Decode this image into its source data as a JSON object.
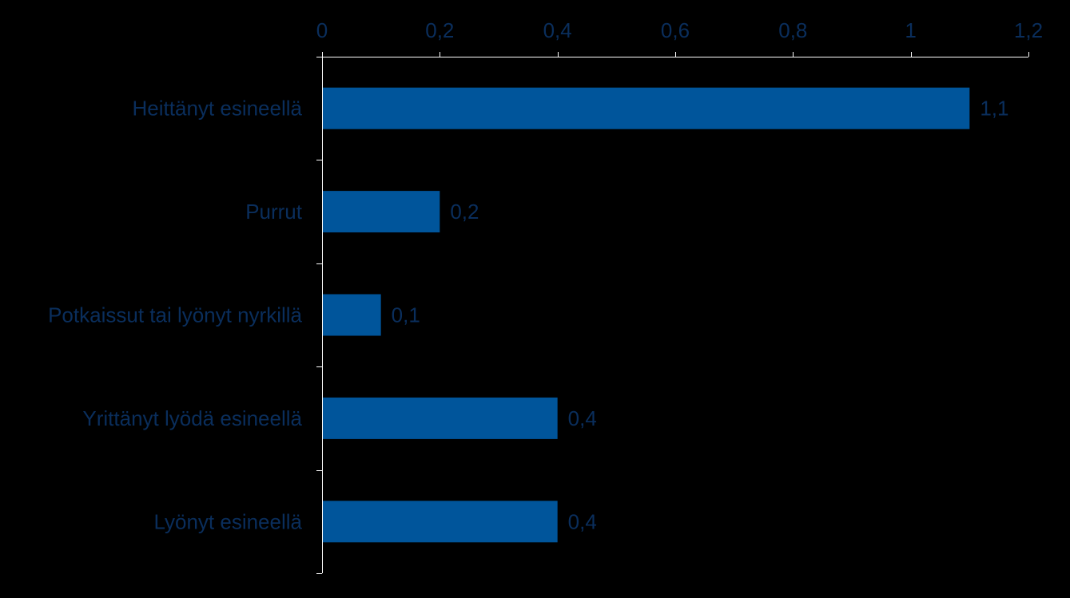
{
  "colors": {
    "background": "#000000",
    "bar": "#00559b",
    "text": "#0a2e5c",
    "axis": "#ffffff"
  },
  "chart_data": {
    "type": "bar",
    "orientation": "horizontal",
    "categories": [
      "Heittänyt esineellä",
      "Purrut",
      "Potkaissut tai lyönyt nyrkillä",
      "Yrittänyt lyödä esineellä",
      "Lyönyt esineellä"
    ],
    "values": [
      1.1,
      0.2,
      0.1,
      0.4,
      0.4
    ],
    "value_labels": [
      "1,1",
      "0,2",
      "0,1",
      "0,4",
      "0,4"
    ],
    "xlim": [
      0,
      1.2
    ],
    "x_ticks": [
      0,
      0.2,
      0.4,
      0.6,
      0.8,
      1,
      1.2
    ],
    "x_tick_labels": [
      "0",
      "0,2",
      "0,4",
      "0,6",
      "0,8",
      "1",
      "1,2"
    ],
    "x_axis_position": "top",
    "grid": false,
    "legend": "none",
    "title": "",
    "xlabel": "",
    "ylabel": ""
  }
}
